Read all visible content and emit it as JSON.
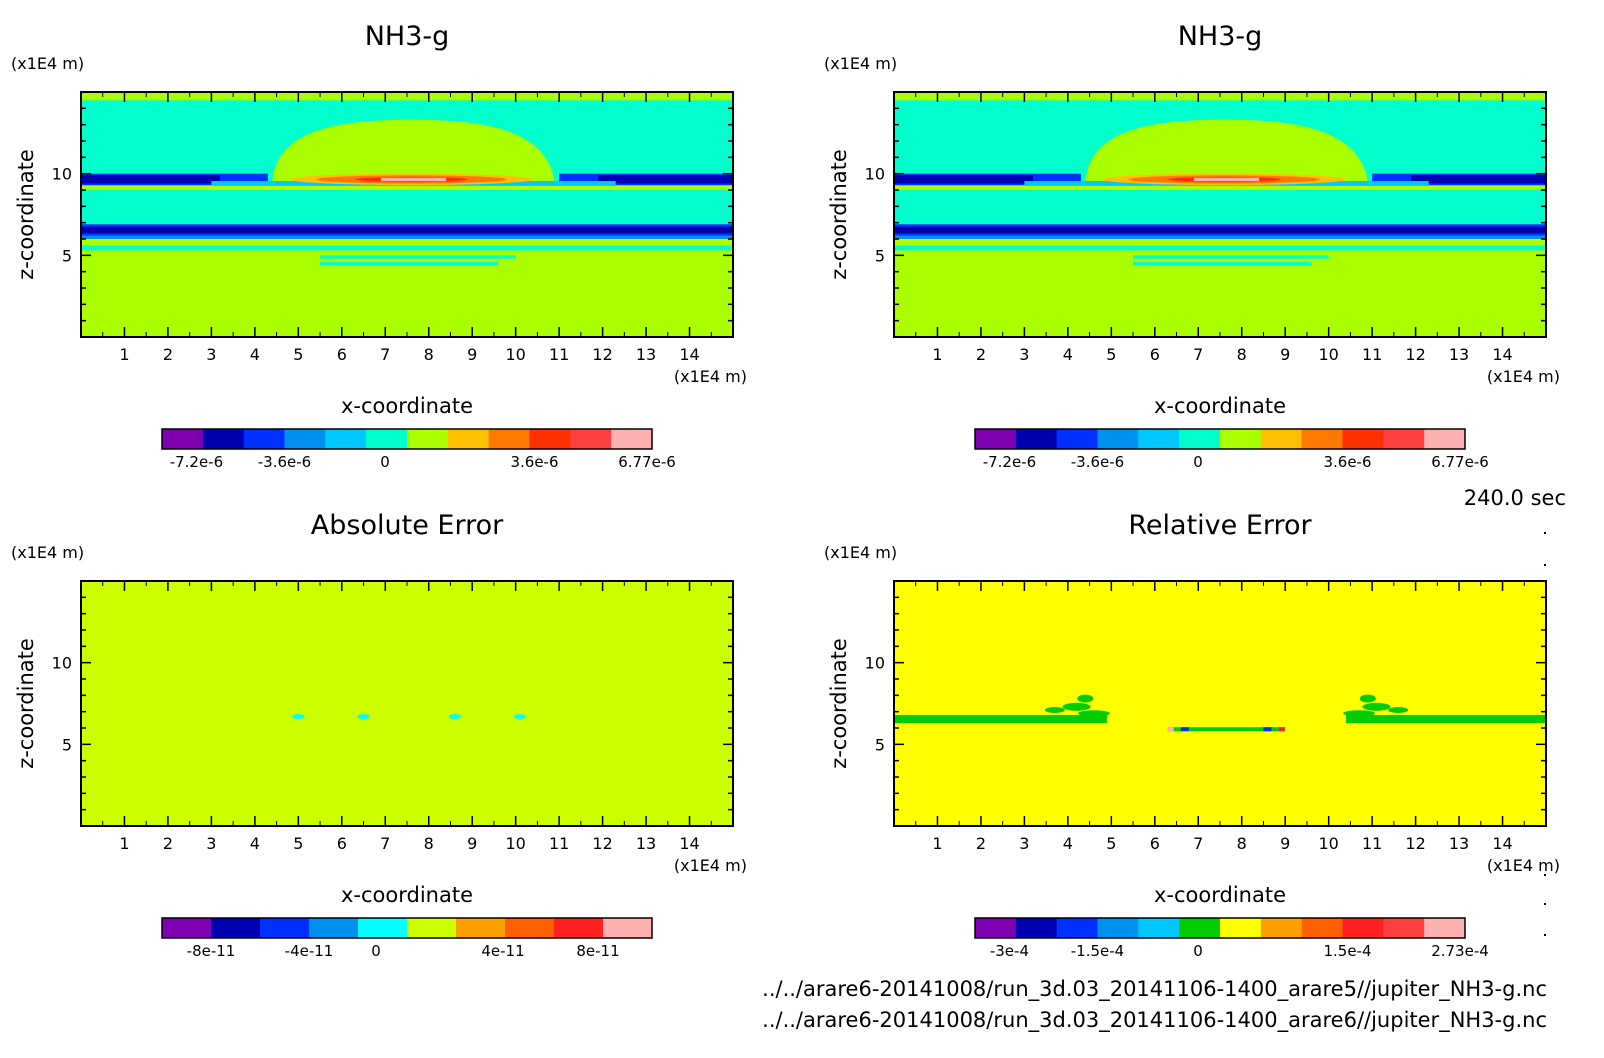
{
  "panels": [
    {
      "title": "NH3-g",
      "unit_z": "(x1E4 m)",
      "unit_x": "(x1E4 m)",
      "xlabel": "x-coordinate",
      "ylabel": "z-coordinate",
      "x_ticks": [
        "1",
        "2",
        "3",
        "4",
        "5",
        "6",
        "7",
        "8",
        "9",
        "10",
        "11",
        "12",
        "13",
        "14"
      ],
      "z_ticks": [
        "5",
        "10"
      ],
      "colorbar_colors": [
        "#7f00b2",
        "#0000b0",
        "#0030ff",
        "#0090f0",
        "#00c8ff",
        "#00ffcc",
        "#aaff00",
        "#ffc000",
        "#ff7800",
        "#ff3000",
        "#ff4040",
        "#ffb0b0"
      ],
      "colorbar_labels": [
        "-7.2e-6",
        "-3.6e-6",
        "0",
        "3.6e-6",
        "6.77e-6"
      ]
    },
    {
      "title": "NH3-g",
      "unit_z": "(x1E4 m)",
      "unit_x": "(x1E4 m)",
      "xlabel": "x-coordinate",
      "ylabel": "z-coordinate",
      "x_ticks": [
        "1",
        "2",
        "3",
        "4",
        "5",
        "6",
        "7",
        "8",
        "9",
        "10",
        "11",
        "12",
        "13",
        "14"
      ],
      "z_ticks": [
        "5",
        "10"
      ],
      "colorbar_colors": [
        "#7f00b2",
        "#0000b0",
        "#0030ff",
        "#0090f0",
        "#00c8ff",
        "#00ffcc",
        "#aaff00",
        "#ffc000",
        "#ff7800",
        "#ff3000",
        "#ff4040",
        "#ffb0b0"
      ],
      "colorbar_labels": [
        "-7.2e-6",
        "-3.6e-6",
        "0",
        "3.6e-6",
        "6.77e-6"
      ]
    },
    {
      "title": "Absolute Error",
      "unit_z": "(x1E4 m)",
      "unit_x": "(x1E4 m)",
      "xlabel": "x-coordinate",
      "ylabel": "z-coordinate",
      "x_ticks": [
        "1",
        "2",
        "3",
        "4",
        "5",
        "6",
        "7",
        "8",
        "9",
        "10",
        "11",
        "12",
        "13",
        "14"
      ],
      "z_ticks": [
        "5",
        "10"
      ],
      "colorbar_colors": [
        "#7f00b2",
        "#0000b0",
        "#0030ff",
        "#0090f0",
        "#00ffff",
        "#ccff00",
        "#ffa000",
        "#ff6000",
        "#ff2020",
        "#ffb0b0"
      ],
      "colorbar_labels": [
        "-8e-11",
        "-4e-11",
        "0",
        "4e-11",
        "8e-11"
      ]
    },
    {
      "title": "Relative Error",
      "unit_z": "(x1E4 m)",
      "unit_x": "(x1E4 m)",
      "xlabel": "x-coordinate",
      "ylabel": "z-coordinate",
      "x_ticks": [
        "1",
        "2",
        "3",
        "4",
        "5",
        "6",
        "7",
        "8",
        "9",
        "10",
        "11",
        "12",
        "13",
        "14"
      ],
      "z_ticks": [
        "5",
        "10"
      ],
      "colorbar_colors": [
        "#7f00b2",
        "#0000b0",
        "#0030ff",
        "#0090f0",
        "#00c8ff",
        "#00cc00",
        "#ffff00",
        "#ffa000",
        "#ff6000",
        "#ff2020",
        "#ff4040",
        "#ffb0b0"
      ],
      "colorbar_labels": [
        "-3e-4",
        "-1.5e-4",
        "0",
        "1.5e-4",
        "2.73e-4"
      ]
    }
  ],
  "time_label": "240.0 sec",
  "file_paths": [
    "../../arare6-20141008/run_3d.03_20141106-1400_arare5//jupiter_NH3-g.nc",
    "../../arare6-20141008/run_3d.03_20141106-1400_arare6//jupiter_NH3-g.nc"
  ],
  "chart_data": [
    {
      "type": "heatmap",
      "title": "NH3-g",
      "xlabel": "x-coordinate",
      "ylabel": "z-coordinate",
      "xlim": [
        0,
        15
      ],
      "ylim": [
        0,
        15
      ],
      "x_ticks": [
        1,
        2,
        3,
        4,
        5,
        6,
        7,
        8,
        9,
        10,
        11,
        12,
        13,
        14
      ],
      "z_ticks": [
        5,
        10
      ],
      "colorbar_range": [
        -7.2e-06,
        6.77e-06
      ],
      "colorbar_ticks": [
        "-7.2e-6",
        "-3.6e-6",
        "0",
        "3.6e-6",
        "6.77e-6"
      ],
      "background_value": 0,
      "features": [
        {
          "shape": "band",
          "z_center": 9.6,
          "value": "strong negative"
        },
        {
          "shape": "band",
          "z_center": 6.5,
          "value": "strong negative"
        },
        {
          "shape": "dome",
          "x_range": [
            4.4,
            10.9
          ],
          "z_range": [
            9.5,
            13.3
          ],
          "value": "weak positive"
        },
        {
          "shape": "core",
          "x_range": [
            5.5,
            10.2
          ],
          "z_center": 9.6,
          "value": "strong positive, max 6.77e-6"
        }
      ]
    },
    {
      "type": "heatmap",
      "title": "NH3-g",
      "xlabel": "x-coordinate",
      "ylabel": "z-coordinate",
      "xlim": [
        0,
        15
      ],
      "ylim": [
        0,
        15
      ],
      "x_ticks": [
        1,
        2,
        3,
        4,
        5,
        6,
        7,
        8,
        9,
        10,
        11,
        12,
        13,
        14
      ],
      "z_ticks": [
        5,
        10
      ],
      "colorbar_range": [
        -7.2e-06,
        6.77e-06
      ],
      "colorbar_ticks": [
        "-7.2e-6",
        "-3.6e-6",
        "0",
        "3.6e-6",
        "6.77e-6"
      ],
      "background_value": 0,
      "features": [
        {
          "shape": "band",
          "z_center": 9.6,
          "value": "strong negative"
        },
        {
          "shape": "band",
          "z_center": 6.5,
          "value": "strong negative"
        },
        {
          "shape": "dome",
          "x_range": [
            4.4,
            10.9
          ],
          "z_range": [
            9.5,
            13.3
          ],
          "value": "weak positive"
        },
        {
          "shape": "core",
          "x_range": [
            5.5,
            10.2
          ],
          "z_center": 9.6,
          "value": "strong positive, max 6.77e-6"
        }
      ]
    },
    {
      "type": "heatmap",
      "title": "Absolute Error",
      "xlabel": "x-coordinate",
      "ylabel": "z-coordinate",
      "xlim": [
        0,
        15
      ],
      "ylim": [
        0,
        15
      ],
      "x_ticks": [
        1,
        2,
        3,
        4,
        5,
        6,
        7,
        8,
        9,
        10,
        11,
        12,
        13,
        14
      ],
      "z_ticks": [
        5,
        10
      ],
      "colorbar_range": [
        -1e-10,
        1e-10
      ],
      "colorbar_ticks": [
        "-8e-11",
        "-4e-11",
        "0",
        "4e-11",
        "8e-11"
      ],
      "background_value": 0,
      "features": [
        {
          "shape": "spot",
          "x": 5.0,
          "z": 6.7,
          "value": "small negative"
        },
        {
          "shape": "spot",
          "x": 6.5,
          "z": 6.7,
          "value": "small negative"
        },
        {
          "shape": "spot",
          "x": 8.6,
          "z": 6.7,
          "value": "small negative"
        },
        {
          "shape": "spot",
          "x": 10.1,
          "z": 6.7,
          "value": "small negative"
        }
      ]
    },
    {
      "type": "heatmap",
      "title": "Relative Error",
      "xlabel": "x-coordinate",
      "ylabel": "z-coordinate",
      "xlim": [
        0,
        15
      ],
      "ylim": [
        0,
        15
      ],
      "x_ticks": [
        1,
        2,
        3,
        4,
        5,
        6,
        7,
        8,
        9,
        10,
        11,
        12,
        13,
        14
      ],
      "z_ticks": [
        5,
        10
      ],
      "colorbar_range": [
        -0.0003,
        0.000273
      ],
      "colorbar_ticks": [
        "-3e-4",
        "-1.5e-4",
        "0",
        "1.5e-4",
        "2.73e-4"
      ],
      "background_value": 0,
      "features": [
        {
          "shape": "band",
          "x_range": [
            0,
            4.9
          ],
          "z_center": 6.5,
          "value": "slightly negative"
        },
        {
          "shape": "band",
          "x_range": [
            10.4,
            15
          ],
          "z_center": 6.5,
          "value": "slightly negative"
        },
        {
          "shape": "blob",
          "x": 4.4,
          "z": 7.2,
          "value": "slightly negative"
        },
        {
          "shape": "blob",
          "x": 10.9,
          "z": 7.2,
          "value": "slightly negative"
        },
        {
          "shape": "band",
          "x_range": [
            6.3,
            9.0
          ],
          "z_center": 5.9,
          "value": "slightly negative with extreme edges"
        }
      ]
    }
  ]
}
